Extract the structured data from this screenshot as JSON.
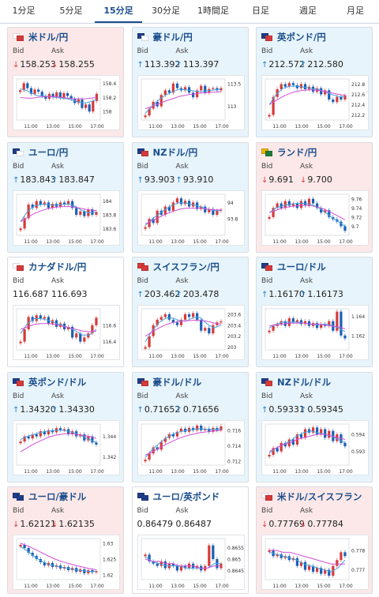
{
  "tabs": [
    {
      "label": "1分足",
      "active": false
    },
    {
      "label": "5分足",
      "active": false
    },
    {
      "label": "15分足",
      "active": true
    },
    {
      "label": "30分足",
      "active": false
    },
    {
      "label": "1時間足",
      "active": false
    },
    {
      "label": "日足",
      "active": false
    },
    {
      "label": "週足",
      "active": false
    },
    {
      "label": "月足",
      "active": false
    }
  ],
  "labels": {
    "bid": "Bid",
    "ask": "Ask"
  },
  "time_ticks": [
    "11:00",
    "13:00",
    "15:00",
    "17:00"
  ],
  "colors": {
    "accent": "#1a4e8c",
    "up_bg": "#e7f4fb",
    "down_bg": "#fce8e8",
    "candle_up": "#d63a3a",
    "candle_down": "#1a5fb4",
    "ma_short": "#4aa3e0",
    "ma_long": "#d14fd4"
  },
  "cards": [
    {
      "pair": "米ドル/円",
      "flag": [
        "#ffffff",
        "#d63a3a"
      ],
      "direction": "down",
      "bid": "158.253",
      "ask": "158.255",
      "yticks": [
        "158.4",
        "158.2",
        "158"
      ],
      "ylim": [
        157.88,
        158.46
      ],
      "series": [
        158.3,
        158.4,
        158.33,
        158.25,
        158.31,
        158.28,
        158.22,
        158.18,
        158.25,
        158.2,
        158.27,
        158.19,
        158.26,
        158.22,
        158.18,
        158.12,
        158.17,
        158.05,
        158.1,
        158.0,
        158.15,
        158.25
      ],
      "ma_short": [
        158.32,
        158.3,
        158.26,
        158.22,
        158.22,
        158.21,
        158.2,
        158.19,
        158.18,
        158.16,
        158.13,
        158.12,
        158.14,
        158.17
      ],
      "ma_long": [
        158.2,
        158.19,
        158.19,
        158.2,
        158.21,
        158.21,
        158.21,
        158.2,
        158.19,
        158.18,
        158.18,
        158.18,
        158.19,
        158.2
      ]
    },
    {
      "pair": "豪ドル/円",
      "flag": [
        "#1f3c88",
        "#ffffff"
      ],
      "direction": "up",
      "bid": "113.392",
      "ask": "113.397",
      "yticks": [
        "113.5",
        "113"
      ],
      "ylim": [
        112.7,
        113.6
      ],
      "series": [
        112.8,
        112.95,
        113.1,
        113.0,
        113.25,
        113.35,
        113.3,
        113.5,
        113.4,
        113.35,
        113.42,
        113.3,
        113.2,
        113.35,
        113.45,
        113.3,
        113.38,
        113.4,
        113.35,
        113.4
      ],
      "ma_short": [
        112.85,
        113.0,
        113.15,
        113.25,
        113.32,
        113.38,
        113.36,
        113.34,
        113.32,
        113.34,
        113.36,
        113.38
      ],
      "ma_long": [
        112.95,
        113.0,
        113.06,
        113.12,
        113.17,
        113.22,
        113.25,
        113.27,
        113.29,
        113.3,
        113.31,
        113.32
      ]
    },
    {
      "pair": "英ポンド/円",
      "flag": [
        "#1f3c88",
        "#d63a3a"
      ],
      "direction": "up",
      "bid": "212.572",
      "ask": "212.580",
      "yticks": [
        "212.8",
        "212.6",
        "212.4",
        "212.2"
      ],
      "ylim": [
        212.1,
        212.9
      ],
      "series": [
        212.2,
        212.55,
        212.7,
        212.8,
        212.75,
        212.82,
        212.78,
        212.72,
        212.8,
        212.7,
        212.75,
        212.65,
        212.72,
        212.6,
        212.68,
        212.5,
        212.45,
        212.55,
        212.5,
        212.58
      ],
      "ma_short": [
        212.4,
        212.6,
        212.72,
        212.76,
        212.76,
        212.74,
        212.72,
        212.7,
        212.66,
        212.6,
        212.56,
        212.55
      ],
      "ma_long": [
        212.4,
        212.48,
        212.56,
        212.62,
        212.66,
        212.68,
        212.69,
        212.68,
        212.66,
        212.63,
        212.6,
        212.58
      ]
    },
    {
      "pair": "ユーロ/円",
      "flag": [
        "#1f3c88",
        "#ffffff"
      ],
      "direction": "up",
      "bid": "183.843",
      "ask": "183.847",
      "yticks": [
        "184",
        "183.8",
        "183.6"
      ],
      "ylim": [
        183.5,
        184.1
      ],
      "series": [
        183.6,
        183.75,
        183.95,
        183.9,
        184.0,
        183.95,
        183.98,
        183.9,
        183.96,
        183.92,
        183.98,
        183.95,
        184.0,
        183.9,
        183.8,
        183.85,
        183.78,
        183.88,
        183.8,
        183.84
      ],
      "ma_short": [
        183.7,
        183.85,
        183.93,
        183.95,
        183.95,
        183.94,
        183.95,
        183.96,
        183.92,
        183.86,
        183.83,
        183.84
      ],
      "ma_long": [
        183.7,
        183.76,
        183.82,
        183.86,
        183.89,
        183.91,
        183.92,
        183.92,
        183.91,
        183.89,
        183.87,
        183.86
      ]
    },
    {
      "pair": "NZドル/円",
      "flag": [
        "#1f3c88",
        "#d63a3a"
      ],
      "direction": "up",
      "bid": "93.903",
      "ask": "93.910",
      "yticks": [
        "94",
        "93.8"
      ],
      "ylim": [
        93.6,
        94.1
      ],
      "series": [
        93.7,
        93.8,
        93.75,
        93.9,
        93.85,
        93.95,
        93.9,
        94.0,
        94.05,
        93.98,
        94.02,
        93.95,
        94.0,
        93.92,
        93.95,
        93.88,
        93.92,
        93.85,
        93.9,
        93.91
      ],
      "ma_short": [
        93.72,
        93.8,
        93.86,
        93.92,
        93.97,
        94.0,
        93.99,
        93.97,
        93.95,
        93.92,
        93.9,
        93.9
      ],
      "ma_long": [
        93.74,
        93.78,
        93.82,
        93.86,
        93.89,
        93.92,
        93.93,
        93.93,
        93.93,
        93.92,
        93.91,
        93.91
      ]
    },
    {
      "pair": "ランド/円",
      "flag": [
        "#e9b500",
        "#1f7a3a"
      ],
      "direction": "down",
      "bid": "9.691",
      "ask": "9.700",
      "yticks": [
        "9.76",
        "9.74",
        "9.72",
        "9.7"
      ],
      "ylim": [
        9.68,
        9.77
      ],
      "series": [
        9.72,
        9.74,
        9.75,
        9.74,
        9.755,
        9.745,
        9.75,
        9.74,
        9.755,
        9.745,
        9.76,
        9.75,
        9.74,
        9.73,
        9.735,
        9.72,
        9.715,
        9.71,
        9.7,
        9.69
      ],
      "ma_short": [
        9.73,
        9.74,
        9.745,
        9.748,
        9.75,
        9.75,
        9.748,
        9.742,
        9.732,
        9.72,
        9.71,
        9.7
      ],
      "ma_long": [
        9.73,
        9.735,
        9.74,
        9.743,
        9.745,
        9.746,
        9.745,
        9.742,
        9.737,
        9.73,
        9.722,
        9.714
      ]
    },
    {
      "pair": "カナダドル/円",
      "flag": [
        "#ffffff",
        "#d63a3a"
      ],
      "direction": "flat",
      "bid": "116.687",
      "ask": "116.693",
      "yticks": [
        "116.6",
        "116.4"
      ],
      "ylim": [
        116.3,
        116.8
      ],
      "series": [
        116.4,
        116.55,
        116.7,
        116.65,
        116.72,
        116.68,
        116.7,
        116.62,
        116.66,
        116.58,
        116.62,
        116.55,
        116.58,
        116.45,
        116.5,
        116.4,
        116.45,
        116.5,
        116.6,
        116.69
      ],
      "ma_short": [
        116.5,
        116.62,
        116.68,
        116.68,
        116.66,
        116.63,
        116.6,
        116.57,
        116.53,
        116.48,
        116.48,
        116.55
      ],
      "ma_long": [
        116.55,
        116.58,
        116.61,
        116.62,
        116.62,
        116.61,
        116.59,
        116.57,
        116.55,
        116.53,
        116.52,
        116.53
      ]
    },
    {
      "pair": "スイスフラン/円",
      "flag": [
        "#d63a3a",
        "#d63a3a"
      ],
      "direction": "up",
      "bid": "203.462",
      "ask": "203.478",
      "yticks": [
        "203.6",
        "203.4",
        "203.2",
        "203"
      ],
      "ylim": [
        202.95,
        203.7
      ],
      "series": [
        203.0,
        203.2,
        203.4,
        203.5,
        203.55,
        203.6,
        203.5,
        203.45,
        203.4,
        203.5,
        203.6,
        203.55,
        203.62,
        203.5,
        203.3,
        203.35,
        203.25,
        203.4,
        203.45,
        203.47
      ],
      "ma_short": [
        203.1,
        203.3,
        203.45,
        203.53,
        203.53,
        203.48,
        203.48,
        203.54,
        203.54,
        203.42,
        203.35,
        203.4
      ],
      "ma_long": [
        203.2,
        203.28,
        203.35,
        203.41,
        203.45,
        203.47,
        203.48,
        203.49,
        203.49,
        203.47,
        203.44,
        203.42
      ]
    },
    {
      "pair": "ユーロ/ドル",
      "flag": [
        "#1f3c88",
        "#d63a3a"
      ],
      "direction": "up",
      "bid": "1.16170",
      "ask": "1.16173",
      "yticks": [
        "1.164",
        "1.162"
      ],
      "ylim": [
        1.1605,
        1.1648
      ],
      "series": [
        1.1625,
        1.163,
        1.1632,
        1.1635,
        1.163,
        1.1638,
        1.1634,
        1.1636,
        1.1632,
        1.1635,
        1.163,
        1.1633,
        1.1628,
        1.1632,
        1.163,
        1.1635,
        1.1625,
        1.1645,
        1.162,
        1.1617
      ],
      "ma_short": [
        1.1628,
        1.1632,
        1.1634,
        1.1634,
        1.1634,
        1.1633,
        1.1632,
        1.1631,
        1.1632,
        1.1631,
        1.1628,
        1.1624
      ],
      "ma_long": [
        1.163,
        1.1631,
        1.1632,
        1.1633,
        1.1633,
        1.1633,
        1.1632,
        1.1632,
        1.1631,
        1.163,
        1.1629,
        1.1627
      ]
    },
    {
      "pair": "英ポンド/ドル",
      "flag": [
        "#1f3c88",
        "#d63a3a"
      ],
      "direction": "up",
      "bid": "1.34320",
      "ask": "1.34330",
      "yticks": [
        "1.344",
        "1.342"
      ],
      "ylim": [
        1.3412,
        1.3452
      ],
      "series": [
        1.3435,
        1.344,
        1.3438,
        1.3442,
        1.344,
        1.3445,
        1.3442,
        1.3446,
        1.3444,
        1.3448,
        1.3446,
        1.3447,
        1.3442,
        1.3445,
        1.344,
        1.3442,
        1.3436,
        1.344,
        1.3434,
        1.3432
      ],
      "ma_short": [
        1.3437,
        1.344,
        1.3442,
        1.3444,
        1.3445,
        1.3446,
        1.3446,
        1.3445,
        1.3443,
        1.344,
        1.3437,
        1.3434
      ],
      "ma_long": [
        1.3425,
        1.3429,
        1.3433,
        1.3436,
        1.3439,
        1.3441,
        1.3442,
        1.3443,
        1.3442,
        1.3441,
        1.344,
        1.3438
      ]
    },
    {
      "pair": "豪ドル/ドル",
      "flag": [
        "#1f3c88",
        "#d63a3a"
      ],
      "direction": "up",
      "bid": "0.71652",
      "ask": "0.71656",
      "yticks": [
        "0.716",
        "0.714",
        "0.712"
      ],
      "ylim": [
        0.7115,
        0.7168
      ],
      "series": [
        0.7122,
        0.713,
        0.7138,
        0.7135,
        0.7145,
        0.715,
        0.7155,
        0.7152,
        0.7158,
        0.7162,
        0.7158,
        0.7163,
        0.716,
        0.7166,
        0.716,
        0.7162,
        0.7158,
        0.7163,
        0.716,
        0.7165
      ],
      "ma_short": [
        0.7125,
        0.7135,
        0.7143,
        0.715,
        0.7155,
        0.7158,
        0.716,
        0.7161,
        0.7162,
        0.7161,
        0.7161,
        0.7162
      ],
      "ma_long": [
        0.7128,
        0.7132,
        0.7137,
        0.7142,
        0.7146,
        0.715,
        0.7153,
        0.7155,
        0.7157,
        0.7158,
        0.7159,
        0.716
      ]
    },
    {
      "pair": "NZドル/ドル",
      "flag": [
        "#1f3c88",
        "#d63a3a"
      ],
      "direction": "up",
      "bid": "0.59331",
      "ask": "0.59345",
      "yticks": [
        "0.594",
        "0.593"
      ],
      "ylim": [
        0.5922,
        0.5946
      ],
      "series": [
        0.5928,
        0.5932,
        0.593,
        0.5935,
        0.5933,
        0.5937,
        0.5934,
        0.594,
        0.5938,
        0.5943,
        0.5941,
        0.5944,
        0.594,
        0.5943,
        0.5938,
        0.5942,
        0.5936,
        0.594,
        0.5935,
        0.5933
      ],
      "ma_short": [
        0.5929,
        0.5932,
        0.5934,
        0.5936,
        0.5939,
        0.5941,
        0.5942,
        0.5941,
        0.594,
        0.5939,
        0.5937,
        0.5935
      ],
      "ma_long": [
        0.593,
        0.5932,
        0.5934,
        0.5935,
        0.5937,
        0.5938,
        0.5939,
        0.594,
        0.594,
        0.5939,
        0.5938,
        0.5937
      ]
    },
    {
      "pair": "ユーロ/豪ドル",
      "flag": [
        "#1f3c88",
        "#1f3c88"
      ],
      "direction": "down",
      "bid": "1.62121",
      "ask": "1.62135",
      "yticks": [
        "1.63",
        "1.625",
        "1.62"
      ],
      "ylim": [
        1.6185,
        1.6315
      ],
      "series": [
        1.6295,
        1.6285,
        1.627,
        1.626,
        1.625,
        1.624,
        1.623,
        1.6238,
        1.6225,
        1.623,
        1.622,
        1.6225,
        1.6215,
        1.6222,
        1.621,
        1.6218,
        1.6205,
        1.6215,
        1.6208,
        1.6212
      ],
      "ma_short": [
        1.629,
        1.6275,
        1.6258,
        1.6244,
        1.6234,
        1.6228,
        1.6224,
        1.622,
        1.6216,
        1.6213,
        1.6211,
        1.6211
      ],
      "ma_long": [
        1.63,
        1.6292,
        1.6282,
        1.6271,
        1.626,
        1.625,
        1.6242,
        1.6236,
        1.623,
        1.6225,
        1.622,
        1.6216
      ]
    },
    {
      "pair": "ユーロ/英ポンド",
      "flag": [
        "#1f3c88",
        "#1f3c88"
      ],
      "direction": "flat",
      "bid": "0.86479",
      "ask": "0.86487",
      "yticks": [
        "0.8655",
        "0.865",
        "0.8645"
      ],
      "ylim": [
        0.8641,
        0.8659
      ],
      "series": [
        0.8652,
        0.8649,
        0.8648,
        0.8647,
        0.8649,
        0.8646,
        0.8648,
        0.8647,
        0.8645,
        0.8647,
        0.8646,
        0.8648,
        0.8646,
        0.8647,
        0.8645,
        0.8647,
        0.8656,
        0.865,
        0.8646,
        0.8648
      ],
      "ma_short": [
        0.8651,
        0.8649,
        0.8648,
        0.8647,
        0.8647,
        0.8647,
        0.8646,
        0.8646,
        0.8646,
        0.8646,
        0.8648,
        0.8648
      ],
      "ma_long": [
        0.865,
        0.8649,
        0.8649,
        0.8648,
        0.8648,
        0.8647,
        0.8647,
        0.8647,
        0.8646,
        0.8646,
        0.8647,
        0.8647
      ]
    },
    {
      "pair": "米ドル/スイスフラン",
      "flag": [
        "#ffffff",
        "#d63a3a"
      ],
      "direction": "down",
      "bid": "0.77769",
      "ask": "0.77784",
      "yticks": [
        "0.778",
        "0.777"
      ],
      "ylim": [
        0.7765,
        0.7786
      ],
      "series": [
        0.778,
        0.7777,
        0.7778,
        0.7776,
        0.7777,
        0.7775,
        0.7776,
        0.7772,
        0.7774,
        0.777,
        0.7772,
        0.7769,
        0.7771,
        0.7768,
        0.777,
        0.7767,
        0.7772,
        0.7775,
        0.7779,
        0.7777
      ],
      "ma_short": [
        0.7779,
        0.7778,
        0.7777,
        0.7776,
        0.7775,
        0.7773,
        0.7772,
        0.7771,
        0.777,
        0.7769,
        0.7771,
        0.7775
      ],
      "ma_long": [
        0.778,
        0.778,
        0.7779,
        0.7779,
        0.7778,
        0.7777,
        0.7776,
        0.7775,
        0.7774,
        0.7773,
        0.7773,
        0.7773
      ]
    }
  ],
  "chart_data": {
    "type": "line",
    "note_source": "each card's series/ma_short/ma_long",
    "x": [
      "11:00",
      "13:00",
      "15:00",
      "17:00"
    ]
  }
}
